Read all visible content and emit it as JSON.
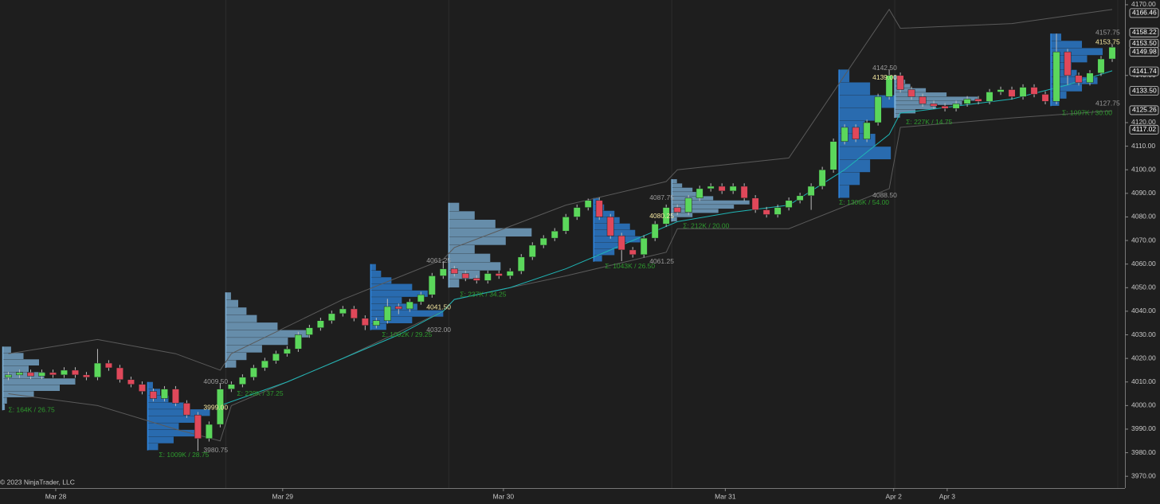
{
  "chart_data": {
    "type": "candlestick",
    "background": "#1e1e1e",
    "up_color": "#5bd75b",
    "down_color": "#e0485a",
    "xlim": [
      -0.75,
      100
    ],
    "ylim": [
      3965,
      4172
    ],
    "yticks": [
      {
        "value": 4170,
        "label": "4170.00"
      },
      {
        "value": 4140,
        "label": "4140.00"
      },
      {
        "value": 4120,
        "label": "4120.00"
      },
      {
        "value": 4110,
        "label": "4110.00"
      },
      {
        "value": 4100,
        "label": "4100.00"
      },
      {
        "value": 4090,
        "label": "4090.00"
      },
      {
        "value": 4080,
        "label": "4080.00"
      },
      {
        "value": 4070,
        "label": "4070.00"
      },
      {
        "value": 4060,
        "label": "4060.00"
      },
      {
        "value": 4050,
        "label": "4050.00"
      },
      {
        "value": 4040,
        "label": "4040.00"
      },
      {
        "value": 4030,
        "label": "4030.00"
      },
      {
        "value": 4020,
        "label": "4020.00"
      },
      {
        "value": 4010,
        "label": "4010.00"
      },
      {
        "value": 4000,
        "label": "4000.00"
      },
      {
        "value": 3990,
        "label": "3990.00"
      },
      {
        "value": 3980,
        "label": "3980.00"
      },
      {
        "value": 3970,
        "label": "3970.00"
      }
    ],
    "xticks": [
      {
        "value": 4.25,
        "label": "Mar 28"
      },
      {
        "value": 24.6,
        "label": "Mar 29"
      },
      {
        "value": 44.4,
        "label": "Mar 30"
      },
      {
        "value": 64.3,
        "label": "Mar 31"
      },
      {
        "value": 79.4,
        "label": "Apr 2"
      },
      {
        "value": 84.2,
        "label": "Apr 3"
      }
    ],
    "session_breaks": [
      19.5,
      39.5,
      59.5,
      79.5,
      99.5
    ],
    "price_tags": [
      {
        "value": 4166.46,
        "label": "4166.46"
      },
      {
        "value": 4158.22,
        "label": "4158.22"
      },
      {
        "value": 4153.5,
        "label": "4153.50"
      },
      {
        "value": 4149.98,
        "label": "4149.98"
      },
      {
        "value": 4141.74,
        "label": "4141.74"
      },
      {
        "value": 4133.5,
        "label": "4133.50"
      },
      {
        "value": 4125.26,
        "label": "4125.26"
      },
      {
        "value": 4117.02,
        "label": "4117.02"
      }
    ],
    "open": [
      4012,
      4013,
      4014,
      4012.5,
      4014,
      4013,
      4015,
      4013,
      4012,
      4018,
      4016,
      4011,
      4009,
      4006,
      4003,
      4007,
      4001,
      3996,
      3986,
      3992,
      4007,
      4009,
      4012,
      4016,
      4019,
      4022,
      4024,
      4030,
      4033,
      4036,
      4039,
      4041,
      4037,
      4034,
      4036,
      4042,
      4041,
      4044,
      4047,
      4055,
      4058,
      4056,
      4054,
      4053,
      4056,
      4055,
      4057,
      4063,
      4068,
      4071,
      4074,
      4080,
      4084,
      4087,
      4080,
      4072,
      4066,
      4064,
      4071,
      4077,
      4084,
      4082,
      4088,
      4092,
      4093,
      4091,
      4093,
      4088,
      4083,
      4081,
      4084,
      4087,
      4089,
      4093,
      4100,
      4112,
      4118,
      4113,
      4120,
      4131,
      4140,
      4134,
      4131,
      4128,
      4127,
      4126,
      4128,
      4130,
      4129,
      4133,
      4134,
      4131,
      4135,
      4132,
      4129,
      4150,
      4140,
      4137,
      4141,
      4147
    ],
    "high": [
      4014.25,
      4015.25,
      4015.25,
      4015.25,
      4015.25,
      4016.25,
      4016.25,
      4014.25,
      4024,
      4019.25,
      4017.25,
      4012.25,
      4010.25,
      4007.25,
      4008.25,
      4008.25,
      4002.25,
      3997.25,
      3993.25,
      4009.5,
      4010.25,
      4013.25,
      4017.25,
      4020.25,
      4023.25,
      4025.25,
      4031.25,
      4034.25,
      4037.25,
      4040.25,
      4042.25,
      4042.25,
      4038.25,
      4037.25,
      4045.25,
      4043.25,
      4045.25,
      4048.25,
      4056.25,
      4061.25,
      4059.25,
      4057.25,
      4055.25,
      4057.25,
      4057.25,
      4058.25,
      4064.25,
      4069.25,
      4072.25,
      4075.25,
      4081.25,
      4085.25,
      4087.75,
      4088.25,
      4081.25,
      4073.25,
      4067.25,
      4072.25,
      4078.25,
      4085.25,
      4085.25,
      4089.25,
      4093.25,
      4094.25,
      4094.25,
      4094.25,
      4094.25,
      4089.25,
      4084.25,
      4085.25,
      4088.25,
      4090.25,
      4094.25,
      4101.25,
      4113.25,
      4119.25,
      4119.25,
      4121.25,
      4132.25,
      4142.5,
      4141.25,
      4135.25,
      4132.25,
      4129.25,
      4128.25,
      4129.25,
      4131.25,
      4131.25,
      4134.25,
      4135.25,
      4135.25,
      4136.25,
      4136.25,
      4133.25,
      4157.75,
      4151.25,
      4141.25,
      4142.25,
      4148.25,
      4153.25
    ],
    "low": [
      4010.75,
      4011.75,
      4011.25,
      4011.25,
      4011.75,
      4011.75,
      4011.75,
      4010.75,
      4010.75,
      4014.75,
      4009.75,
      4007.75,
      4004.75,
      4001.75,
      4001.75,
      3999.75,
      3994.75,
      3980.75,
      3984.75,
      3990.75,
      4005.75,
      4007.75,
      4010.75,
      4014.75,
      4017.75,
      4020.75,
      4022.75,
      4028.75,
      4031.75,
      4034.75,
      4037.75,
      4035.75,
      4032,
      4032.75,
      4034.75,
      4038.75,
      4039.75,
      4042.75,
      4045.75,
      4053.75,
      4054.75,
      4052.75,
      4051.75,
      4051.75,
      4053.75,
      4053.75,
      4055.75,
      4061.75,
      4066.75,
      4069.75,
      4072.75,
      4078.75,
      4082.75,
      4078.75,
      4070.75,
      4061.25,
      4062.75,
      4062.75,
      4069.75,
      4075.75,
      4080.75,
      4080.75,
      4086.75,
      4090.75,
      4089.75,
      4089.75,
      4086.75,
      4081.75,
      4079.75,
      4079.75,
      4082.75,
      4085.75,
      4083,
      4091.75,
      4098.75,
      4110.75,
      4111.75,
      4111.75,
      4118.75,
      4129.75,
      4132.75,
      4129.75,
      4126.75,
      4125.75,
      4124.75,
      4124.75,
      4126.75,
      4127.75,
      4127.75,
      4131.75,
      4129.75,
      4129.75,
      4130.75,
      4127.75,
      4127.75,
      4136,
      4135.75,
      4135.75,
      4139.75,
      4145.75
    ],
    "close": [
      4013,
      4014,
      4012.5,
      4014,
      4013,
      4015,
      4013,
      4012,
      4018,
      4016,
      4011,
      4009,
      4006,
      4003,
      4007,
      4001,
      3996,
      3986,
      3992,
      4007,
      4009,
      4012,
      4016,
      4019,
      4022,
      4024,
      4030,
      4033,
      4036,
      4039,
      4041,
      4037,
      4034,
      4036,
      4042,
      4041,
      4044,
      4047,
      4055,
      4058,
      4056,
      4054,
      4053,
      4056,
      4055,
      4057,
      4063,
      4068,
      4071,
      4074,
      4080,
      4084,
      4087,
      4080,
      4072,
      4066,
      4064,
      4071,
      4077,
      4084,
      4082,
      4088,
      4092,
      4093,
      4091,
      4093,
      4088,
      4083,
      4081,
      4084,
      4087,
      4089,
      4093,
      4100,
      4112,
      4118,
      4113,
      4120,
      4131,
      4140,
      4134,
      4131,
      4128,
      4127,
      4126,
      4128,
      4130,
      4129,
      4133,
      4134,
      4131,
      4135,
      4132,
      4129,
      4150,
      4140,
      4137,
      4141,
      4147,
      4152
    ],
    "lines": [
      {
        "color": "#5a5a5a",
        "x": [
          0,
          8,
          15,
          19,
          20,
          30,
          39,
          40,
          50,
          59,
          60,
          70,
          79,
          80,
          90,
          99
        ],
        "values": [
          4022,
          4028,
          4022,
          4015,
          4022,
          4045,
          4062,
          4067,
          4085,
          4095,
          4100,
          4105,
          4168,
          4160,
          4162,
          4168
        ]
      },
      {
        "color": "#5a5a5a",
        "x": [
          0,
          8,
          15,
          19,
          20,
          30,
          39,
          40,
          50,
          59,
          60,
          70,
          79,
          80,
          90,
          99
        ],
        "values": [
          4005,
          4000,
          3990,
          3985,
          4000,
          4020,
          4040,
          4045,
          4055,
          4065,
          4075,
          4075,
          4092,
          4118,
          4122,
          4125
        ]
      },
      {
        "color": "#1fb5b5",
        "x": [
          19,
          25,
          30,
          35,
          39,
          40,
          45,
          50,
          55,
          59,
          60,
          65,
          70,
          75,
          79,
          80,
          85,
          90,
          95,
          99
        ],
        "values": [
          4000,
          4010,
          4020,
          4030,
          4040,
          4045,
          4050,
          4058,
          4068,
          4076,
          4078,
          4082,
          4085,
          4100,
          4115,
          4124,
          4127,
          4130,
          4136,
          4142
        ]
      }
    ],
    "profiles": [
      {
        "start": 0,
        "low": 3998,
        "high": 4025,
        "color": "#7fb3d9",
        "volumes": [
          2,
          4,
          30,
          55,
          70,
          40,
          25,
          35,
          20,
          8
        ]
      },
      {
        "start": 13,
        "low": 3981,
        "high": 4010,
        "color": "#2e86e0",
        "volumes": [
          10,
          25,
          45,
          30,
          50,
          60,
          35,
          20,
          12,
          5
        ]
      },
      {
        "start": 20,
        "low": 4016,
        "high": 4048,
        "color": "#7fb3d9",
        "volumes": [
          10,
          20,
          35,
          60,
          80,
          50,
          30,
          20,
          12,
          5
        ]
      },
      {
        "start": 33,
        "low": 4032,
        "high": 4060,
        "color": "#2e86e0",
        "volumes": [
          15,
          40,
          70,
          45,
          30,
          55,
          40,
          20,
          10,
          5
        ]
      },
      {
        "start": 40,
        "low": 4050,
        "high": 4086,
        "color": "#7fb3d9",
        "volumes": [
          10,
          30,
          50,
          40,
          25,
          55,
          80,
          45,
          25,
          10
        ]
      },
      {
        "start": 53,
        "low": 4061,
        "high": 4088,
        "color": "#2e86e0",
        "volumes": [
          8,
          20,
          30,
          45,
          40,
          35,
          25,
          20,
          10,
          5
        ]
      },
      {
        "start": 60,
        "low": 4078,
        "high": 4096,
        "color": "#7fb3d9",
        "volumes": [
          5,
          20,
          45,
          60,
          75,
          40,
          30,
          20,
          10,
          5
        ]
      },
      {
        "start": 75,
        "low": 4088,
        "high": 4142.5,
        "color": "#2e86e0",
        "volumes": [
          10,
          20,
          30,
          50,
          35,
          25,
          40,
          55,
          30,
          10
        ]
      },
      {
        "start": 80,
        "low": 4122,
        "high": 4140,
        "color": "#7fb3d9",
        "volumes": [
          5,
          20,
          40,
          65,
          80,
          50,
          30,
          15,
          10,
          5
        ]
      },
      {
        "start": 94,
        "low": 4127,
        "high": 4157.75,
        "color": "#2e86e0",
        "volumes": [
          8,
          15,
          30,
          45,
          25,
          20,
          35,
          50,
          30,
          10
        ]
      }
    ],
    "annotations": [
      {
        "text": "Σ: 164K / 26.75",
        "bar": 0,
        "price": 3998,
        "color": "#2e9a2e"
      },
      {
        "text": "4009.50",
        "bar": 17.5,
        "price": 4010,
        "color": "#9a9a9a"
      },
      {
        "text": "3999.00",
        "bar": 17.5,
        "price": 3999,
        "color": "#f4e7a1"
      },
      {
        "text": "3980.75",
        "bar": 17.5,
        "price": 3981,
        "color": "#9a9a9a"
      },
      {
        "text": "Σ: 1009K / 28.75",
        "bar": 13.5,
        "price": 3979,
        "color": "#2e9a2e"
      },
      {
        "text": "Σ: 229K / 37.25",
        "bar": 20.5,
        "price": 4005,
        "color": "#2e9a2e"
      },
      {
        "text": "4061.25",
        "bar": 37.5,
        "price": 4061.25,
        "color": "#9a9a9a"
      },
      {
        "text": "4041.50",
        "bar": 37.5,
        "price": 4041.5,
        "color": "#f4e7a1"
      },
      {
        "text": "4032.00",
        "bar": 37.5,
        "price": 4032,
        "color": "#9a9a9a"
      },
      {
        "text": "Σ: 1092K / 29.25",
        "bar": 33.5,
        "price": 4030,
        "color": "#2e9a2e"
      },
      {
        "text": "Σ: 237K / 34.25",
        "bar": 40.5,
        "price": 4047,
        "color": "#2e9a2e"
      },
      {
        "text": "4087.75",
        "bar": 57.5,
        "price": 4088,
        "color": "#9a9a9a"
      },
      {
        "text": "4080.25",
        "bar": 57.5,
        "price": 4080.25,
        "color": "#f4e7a1"
      },
      {
        "text": "4061.25",
        "bar": 57.5,
        "price": 4061,
        "color": "#9a9a9a"
      },
      {
        "text": "Σ: 1043K / 26.50",
        "bar": 53.5,
        "price": 4059,
        "color": "#2e9a2e"
      },
      {
        "text": "Σ: 212K / 20.00",
        "bar": 60.5,
        "price": 4076,
        "color": "#2e9a2e"
      },
      {
        "text": "4142.50",
        "bar": 77.5,
        "price": 4143,
        "color": "#9a9a9a"
      },
      {
        "text": "4139.00",
        "bar": 77.5,
        "price": 4139,
        "color": "#f4e7a1"
      },
      {
        "text": "4088.50",
        "bar": 77.5,
        "price": 4089,
        "color": "#9a9a9a"
      },
      {
        "text": "Σ: 1306K / 54.00",
        "bar": 74.5,
        "price": 4086,
        "color": "#2e9a2e"
      },
      {
        "text": "Σ: 227K / 14.75",
        "bar": 80.5,
        "price": 4120,
        "color": "#2e9a2e"
      },
      {
        "text": "4157.75",
        "bar": 97.5,
        "price": 4158,
        "color": "#9a9a9a"
      },
      {
        "text": "4153.75",
        "bar": 97.5,
        "price": 4154,
        "color": "#f4e7a1"
      },
      {
        "text": "4127.75",
        "bar": 97.5,
        "price": 4128,
        "color": "#9a9a9a"
      },
      {
        "text": "Σ: 1097K / 30.00",
        "bar": 94.5,
        "price": 4124,
        "color": "#2e9a2e"
      }
    ],
    "copyright": "© 2023 NinjaTrader, LLC"
  }
}
